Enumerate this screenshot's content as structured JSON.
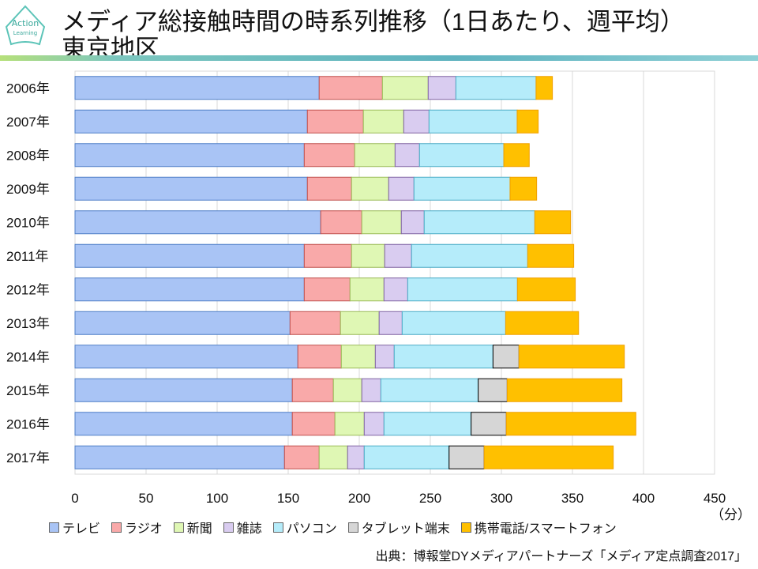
{
  "title": {
    "line1": "メディア総接触時間の時系列推移（1日あたり、週平均）",
    "line2": "東京地区"
  },
  "logo": {
    "text": "Action Learning"
  },
  "source": "出典：博報堂DYメディアパートナーズ「メディア定点調査2017」",
  "chart_data": {
    "type": "bar",
    "orientation": "horizontal",
    "stacked": true,
    "categories": [
      "2006年",
      "2007年",
      "2008年",
      "2009年",
      "2010年",
      "2011年",
      "2012年",
      "2013年",
      "2014年",
      "2015年",
      "2016年",
      "2017年"
    ],
    "xlabel": "（分）",
    "xlim": [
      0,
      450
    ],
    "xticks": [
      0,
      50,
      100,
      150,
      200,
      250,
      300,
      350,
      400,
      450
    ],
    "grid": true,
    "legend_position": "bottom",
    "series": [
      {
        "name": "テレビ",
        "color": "#a9c4f5",
        "values": [
          171.8,
          163.5,
          161.3,
          163.5,
          172.9,
          161.3,
          161.3,
          151.3,
          156.8,
          152.9,
          152.9,
          147.4
        ]
      },
      {
        "name": "ラジオ",
        "color": "#f9a9a9",
        "values": [
          44.5,
          39.4,
          35.5,
          31.1,
          28.9,
          33.3,
          32.2,
          35.5,
          30.6,
          28.9,
          30.0,
          24.4
        ]
      },
      {
        "name": "新聞",
        "color": "#dff7b4",
        "values": [
          32.2,
          28.4,
          28.4,
          26.1,
          27.8,
          23.3,
          23.9,
          27.2,
          23.9,
          20.0,
          20.6,
          20.0
        ]
      },
      {
        "name": "雑誌",
        "color": "#d9ccf0",
        "values": [
          19.5,
          17.8,
          17.2,
          17.8,
          16.1,
          18.9,
          16.7,
          16.2,
          13.3,
          13.4,
          13.9,
          11.7
        ]
      },
      {
        "name": "パソコン",
        "color": "#b5ecfa",
        "values": [
          56.4,
          62.0,
          59.3,
          67.6,
          77.8,
          81.7,
          77.2,
          72.8,
          69.5,
          68.5,
          61.3,
          59.7
        ]
      },
      {
        "name": "タブレット端末",
        "color": "#d6d6d6",
        "values": [
          0,
          0,
          0,
          0,
          0,
          0,
          0,
          0,
          18.3,
          20.4,
          24.8,
          24.7
        ]
      },
      {
        "name": "携帯電話/スマートフォン",
        "color": "#ffc000",
        "values": [
          11.5,
          14.8,
          17.9,
          18.7,
          25.2,
          32.4,
          40.7,
          51.3,
          74.1,
          80.7,
          91.1,
          90.8
        ]
      }
    ]
  }
}
